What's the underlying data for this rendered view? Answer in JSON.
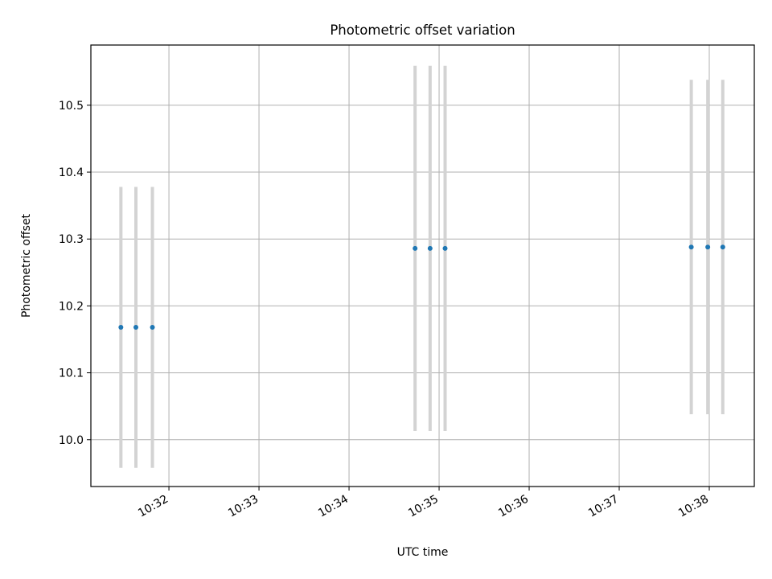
{
  "chart_data": {
    "type": "scatter",
    "title": "Photometric offset variation",
    "xlabel": "UTC time",
    "ylabel": "Photometric offset",
    "x_ticks": [
      "10:32",
      "10:33",
      "10:34",
      "10:35",
      "10:36",
      "10:37",
      "10:38"
    ],
    "x_tick_minutes": [
      32,
      33,
      34,
      35,
      36,
      37,
      38
    ],
    "y_ticks": [
      "10.0",
      "10.1",
      "10.2",
      "10.3",
      "10.4",
      "10.5"
    ],
    "y_tick_values": [
      10.0,
      10.1,
      10.2,
      10.3,
      10.4,
      10.5
    ],
    "xlim": [
      "10:31:08",
      "10:38:30"
    ],
    "ylim": [
      9.93,
      10.59
    ],
    "grid": true,
    "points": [
      {
        "time": "10:31:28",
        "y": 10.168,
        "yerr": 0.21
      },
      {
        "time": "10:31:38",
        "y": 10.168,
        "yerr": 0.21
      },
      {
        "time": "10:31:49",
        "y": 10.168,
        "yerr": 0.21
      },
      {
        "time": "10:34:44",
        "y": 10.286,
        "yerr": 0.273
      },
      {
        "time": "10:34:54",
        "y": 10.286,
        "yerr": 0.273
      },
      {
        "time": "10:35:04",
        "y": 10.286,
        "yerr": 0.273
      },
      {
        "time": "10:37:48",
        "y": 10.288,
        "yerr": 0.25
      },
      {
        "time": "10:37:59",
        "y": 10.288,
        "yerr": 0.25
      },
      {
        "time": "10:38:09",
        "y": 10.288,
        "yerr": 0.25
      }
    ],
    "colors": {
      "marker": "#1f77b4",
      "errorbar": "#d3d3d3",
      "grid": "#b0b0b0",
      "axes": "#000000"
    }
  }
}
